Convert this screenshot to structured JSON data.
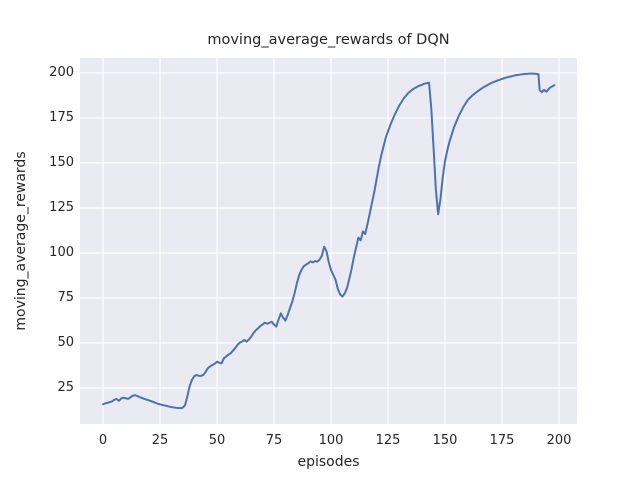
{
  "figure": {
    "background_color": "#ffffff",
    "axes_background_color": "#eaeaf2",
    "grid_color": "#ffffff",
    "text_color": "#262626",
    "line_color": "#4c72b0"
  },
  "chart_data": {
    "type": "line",
    "title": "moving_average_rewards of DQN",
    "xlabel": "episodes",
    "ylabel": "moving_average_rewards",
    "grid": true,
    "legend_position": "none",
    "x_ticks": [
      0,
      25,
      50,
      75,
      100,
      125,
      150,
      175,
      200
    ],
    "y_ticks": [
      25,
      50,
      75,
      100,
      125,
      150,
      175,
      200
    ],
    "xlim": [
      -10.1,
      207.9
    ],
    "ylim": [
      5.0,
      208.3
    ],
    "series": [
      {
        "name": "moving_average_rewards",
        "color": "#4c72b0",
        "points": [
          [
            0,
            16.0
          ],
          [
            1,
            16.4
          ],
          [
            2,
            16.8
          ],
          [
            3,
            17.2
          ],
          [
            4,
            17.6
          ],
          [
            5,
            18.5
          ],
          [
            6,
            18.9
          ],
          [
            7,
            17.9
          ],
          [
            8,
            19.2
          ],
          [
            9,
            19.6
          ],
          [
            10,
            19.3
          ],
          [
            11,
            18.9
          ],
          [
            12,
            19.8
          ],
          [
            13,
            20.7
          ],
          [
            14,
            21.0
          ],
          [
            15,
            20.6
          ],
          [
            16,
            20.0
          ],
          [
            17,
            19.5
          ],
          [
            18,
            19.0
          ],
          [
            19,
            18.6
          ],
          [
            20,
            18.2
          ],
          [
            21,
            17.7
          ],
          [
            22,
            17.3
          ],
          [
            23,
            16.8
          ],
          [
            24,
            16.3
          ],
          [
            25,
            15.9
          ],
          [
            26,
            15.6
          ],
          [
            27,
            15.3
          ],
          [
            28,
            15.0
          ],
          [
            29,
            14.7
          ],
          [
            30,
            14.4
          ],
          [
            31,
            14.2
          ],
          [
            32,
            14.0
          ],
          [
            33,
            13.9
          ],
          [
            34,
            13.8
          ],
          [
            35,
            14.1
          ],
          [
            36,
            15.5
          ],
          [
            37,
            20.5
          ],
          [
            38,
            26.0
          ],
          [
            39,
            29.5
          ],
          [
            40,
            31.5
          ],
          [
            41,
            32.2
          ],
          [
            42,
            31.8
          ],
          [
            43,
            31.7
          ],
          [
            44,
            32.3
          ],
          [
            45,
            34.0
          ],
          [
            46,
            36.0
          ],
          [
            47,
            37.0
          ],
          [
            48,
            37.8
          ],
          [
            49,
            38.5
          ],
          [
            50,
            39.6
          ],
          [
            51,
            39.0
          ],
          [
            52,
            38.7
          ],
          [
            53,
            41.5
          ],
          [
            54,
            42.5
          ],
          [
            55,
            43.5
          ],
          [
            56,
            44.3
          ],
          [
            57,
            45.8
          ],
          [
            58,
            47.2
          ],
          [
            59,
            49.0
          ],
          [
            60,
            50.2
          ],
          [
            61,
            50.8
          ],
          [
            62,
            51.7
          ],
          [
            63,
            50.7
          ],
          [
            64,
            52.0
          ],
          [
            65,
            53.5
          ],
          [
            66,
            55.5
          ],
          [
            67,
            57.0
          ],
          [
            68,
            58.2
          ],
          [
            69,
            59.4
          ],
          [
            70,
            60.3
          ],
          [
            71,
            61.3
          ],
          [
            72,
            60.7
          ],
          [
            73,
            61.2
          ],
          [
            74,
            61.8
          ],
          [
            75,
            60.2
          ],
          [
            76,
            59.1
          ],
          [
            77,
            63.0
          ],
          [
            78,
            66.5
          ],
          [
            79,
            64.0
          ],
          [
            80,
            62.4
          ],
          [
            81,
            65.6
          ],
          [
            82,
            69.3
          ],
          [
            83,
            73.0
          ],
          [
            84,
            77.5
          ],
          [
            85,
            83.0
          ],
          [
            86,
            87.5
          ],
          [
            87,
            90.5
          ],
          [
            88,
            92.5
          ],
          [
            89,
            93.5
          ],
          [
            90,
            94.2
          ],
          [
            91,
            95.3
          ],
          [
            92,
            94.8
          ],
          [
            93,
            95.5
          ],
          [
            94,
            95.2
          ],
          [
            95,
            96.3
          ],
          [
            96,
            98.5
          ],
          [
            97,
            103.5
          ],
          [
            98,
            101.0
          ],
          [
            99,
            95.0
          ],
          [
            100,
            90.5
          ],
          [
            101,
            87.8
          ],
          [
            102,
            85.0
          ],
          [
            103,
            80.0
          ],
          [
            104,
            77.0
          ],
          [
            105,
            75.8
          ],
          [
            106,
            77.5
          ],
          [
            107,
            80.5
          ],
          [
            108,
            85.5
          ],
          [
            109,
            91.0
          ],
          [
            110,
            97.5
          ],
          [
            111,
            103.0
          ],
          [
            112,
            108.5
          ],
          [
            113,
            107.0
          ],
          [
            114,
            112.0
          ],
          [
            115,
            110.5
          ],
          [
            116,
            116.0
          ],
          [
            117,
            122.0
          ],
          [
            118,
            128.0
          ],
          [
            119,
            134.0
          ],
          [
            120,
            141.0
          ],
          [
            121,
            148.0
          ],
          [
            122,
            154.0
          ],
          [
            123,
            159.0
          ],
          [
            124,
            164.0
          ],
          [
            125,
            167.5
          ],
          [
            126,
            171.0
          ],
          [
            127,
            174.0
          ],
          [
            128,
            177.0
          ],
          [
            129,
            179.5
          ],
          [
            130,
            182.0
          ],
          [
            131,
            184.0
          ],
          [
            132,
            186.0
          ],
          [
            133,
            187.5
          ],
          [
            134,
            189.0
          ],
          [
            135,
            190.0
          ],
          [
            136,
            191.0
          ],
          [
            137,
            191.8
          ],
          [
            138,
            192.5
          ],
          [
            139,
            193.0
          ],
          [
            140,
            193.5
          ],
          [
            141,
            194.0
          ],
          [
            142,
            194.3
          ],
          [
            143,
            194.6
          ],
          [
            144,
            180.0
          ],
          [
            145,
            158.0
          ],
          [
            146,
            135.0
          ],
          [
            147,
            121.5
          ],
          [
            148,
            130.0
          ],
          [
            149,
            142.0
          ],
          [
            150,
            151.0
          ],
          [
            151,
            157.0
          ],
          [
            152,
            162.0
          ],
          [
            153,
            166.0
          ],
          [
            154,
            170.0
          ],
          [
            155,
            173.0
          ],
          [
            156,
            176.0
          ],
          [
            157,
            178.5
          ],
          [
            158,
            181.0
          ],
          [
            159,
            183.0
          ],
          [
            160,
            185.0
          ],
          [
            161,
            186.3
          ],
          [
            162,
            187.5
          ],
          [
            163,
            188.5
          ],
          [
            164,
            189.5
          ],
          [
            165,
            190.4
          ],
          [
            166,
            191.3
          ],
          [
            167,
            192.1
          ],
          [
            168,
            192.8
          ],
          [
            169,
            193.5
          ],
          [
            170,
            194.2
          ],
          [
            171,
            194.8
          ],
          [
            172,
            195.3
          ],
          [
            173,
            195.8
          ],
          [
            174,
            196.2
          ],
          [
            175,
            196.7
          ],
          [
            176,
            197.1
          ],
          [
            177,
            197.5
          ],
          [
            178,
            197.8
          ],
          [
            179,
            198.1
          ],
          [
            180,
            198.4
          ],
          [
            181,
            198.7
          ],
          [
            182,
            198.9
          ],
          [
            183,
            199.1
          ],
          [
            184,
            199.3
          ],
          [
            185,
            199.5
          ],
          [
            186,
            199.5
          ],
          [
            187,
            199.6
          ],
          [
            188,
            199.6
          ],
          [
            189,
            199.6
          ],
          [
            190,
            199.5
          ],
          [
            191,
            199.3
          ],
          [
            191.5,
            190.5
          ],
          [
            192.5,
            189.3
          ],
          [
            193.5,
            190.6
          ],
          [
            194.5,
            189.6
          ],
          [
            196,
            191.8
          ],
          [
            197,
            192.5
          ],
          [
            198,
            193.2
          ]
        ]
      }
    ]
  }
}
